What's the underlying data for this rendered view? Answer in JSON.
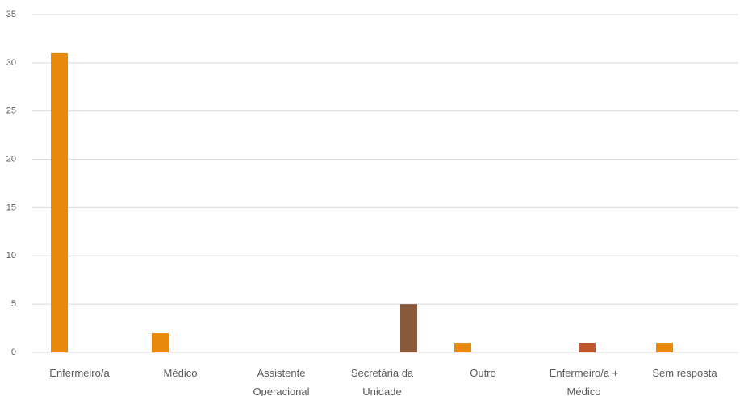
{
  "chart_data": {
    "type": "bar",
    "categories": [
      "Enfermeiro/a",
      "Médico",
      "Assistente Operacional",
      "Secretária da Unidade",
      "Outro",
      "Enfermeiro/a + Médico",
      "Sem resposta"
    ],
    "series": [
      {
        "color": "#e8890c",
        "values": [
          31,
          2,
          0,
          0,
          1,
          0,
          1
        ]
      },
      {
        "color": "#c0562a",
        "values": [
          0,
          0,
          0,
          0,
          0,
          1,
          0
        ]
      },
      {
        "color": "#8b5a3c",
        "values": [
          0,
          0,
          0,
          5,
          0,
          0,
          0
        ]
      }
    ],
    "ylim": [
      0,
      35
    ],
    "yticks": [
      0,
      5,
      10,
      15,
      20,
      25,
      30,
      35
    ],
    "grid": true
  }
}
